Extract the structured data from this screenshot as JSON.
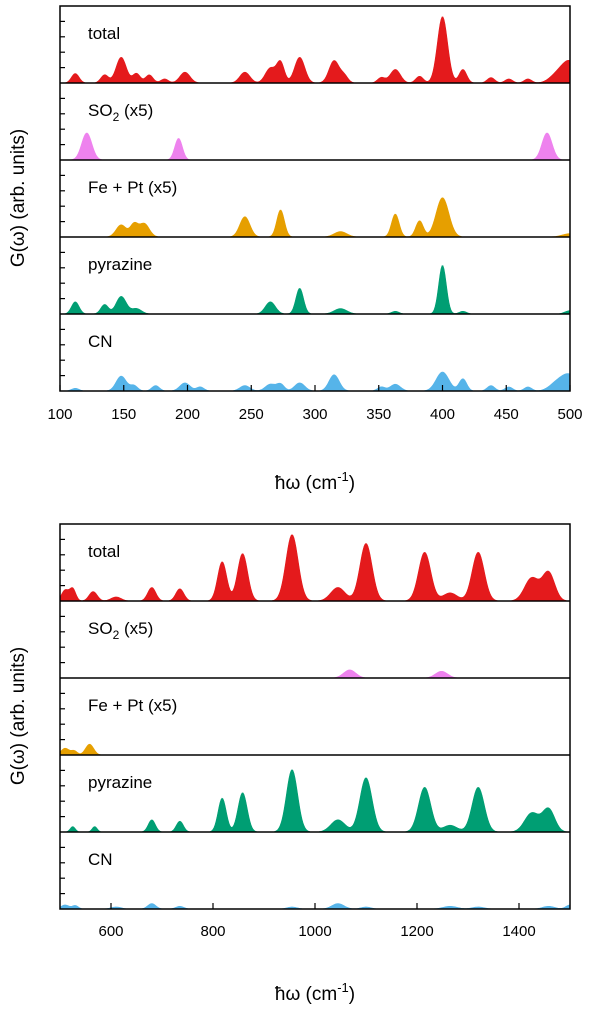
{
  "colors": {
    "total": "#e41a1c",
    "SO2": "#ee82ee",
    "FePt": "#e69f00",
    "pyrazine": "#009e73",
    "CN": "#56b4e9"
  },
  "chart_data": [
    {
      "type": "area",
      "ylabel": "G(ω) (arb. units)",
      "xlabel_main": "ħω (cm",
      "xlabel_sup": "-1",
      "xlabel_tail": ")",
      "xlim": [
        100,
        500
      ],
      "xticks": [
        100,
        150,
        200,
        250,
        300,
        350,
        400,
        450,
        500
      ],
      "grid": false,
      "panels": [
        {
          "name": "total",
          "label": "total",
          "color_key": "total",
          "peaks": [
            [
              112,
              0.14,
              3
            ],
            [
              135,
              0.12,
              3
            ],
            [
              148,
              0.38,
              4
            ],
            [
              160,
              0.14,
              3
            ],
            [
              170,
              0.12,
              3
            ],
            [
              182,
              0.06,
              3
            ],
            [
              198,
              0.16,
              4
            ],
            [
              245,
              0.16,
              4
            ],
            [
              265,
              0.22,
              4
            ],
            [
              273,
              0.3,
              3
            ],
            [
              288,
              0.38,
              4
            ],
            [
              315,
              0.33,
              4
            ],
            [
              323,
              0.1,
              3
            ],
            [
              352,
              0.08,
              3
            ],
            [
              363,
              0.2,
              4
            ],
            [
              382,
              0.1,
              3
            ],
            [
              400,
              0.98,
              4
            ],
            [
              416,
              0.2,
              3
            ],
            [
              438,
              0.08,
              3
            ],
            [
              452,
              0.06,
              3
            ],
            [
              467,
              0.06,
              3
            ],
            [
              490,
              0.12,
              6
            ],
            [
              500,
              0.3,
              6
            ]
          ]
        },
        {
          "name": "SO2",
          "label_main": "SO",
          "label_sub": "2",
          "label_tail": " (x5)",
          "color_key": "SO2",
          "peaks": [
            [
              121,
              0.4,
              4
            ],
            [
              193,
              0.32,
              3
            ],
            [
              482,
              0.4,
              4
            ]
          ]
        },
        {
          "name": "FePt",
          "label": "Fe + Pt (x5)",
          "color_key": "FePt",
          "peaks": [
            [
              148,
              0.18,
              4
            ],
            [
              158,
              0.18,
              3
            ],
            [
              166,
              0.2,
              4
            ],
            [
              245,
              0.3,
              4
            ],
            [
              273,
              0.4,
              3
            ],
            [
              320,
              0.08,
              5
            ],
            [
              363,
              0.34,
              3
            ],
            [
              382,
              0.24,
              3
            ],
            [
              400,
              0.58,
              5
            ],
            [
              500,
              0.05,
              6
            ]
          ]
        },
        {
          "name": "pyrazine",
          "label": "pyrazine",
          "color_key": "pyrazine",
          "peaks": [
            [
              112,
              0.18,
              3
            ],
            [
              135,
              0.14,
              3
            ],
            [
              148,
              0.26,
              4
            ],
            [
              160,
              0.08,
              4
            ],
            [
              265,
              0.18,
              4
            ],
            [
              288,
              0.38,
              3
            ],
            [
              320,
              0.08,
              5
            ],
            [
              363,
              0.04,
              3
            ],
            [
              400,
              0.72,
              3
            ],
            [
              416,
              0.04,
              3
            ],
            [
              500,
              0.05,
              4
            ]
          ]
        },
        {
          "name": "CN",
          "label": "CN",
          "color_key": "CN",
          "peaks": [
            [
              112,
              0.04,
              3
            ],
            [
              148,
              0.22,
              4
            ],
            [
              158,
              0.08,
              3
            ],
            [
              175,
              0.08,
              3
            ],
            [
              198,
              0.12,
              4
            ],
            [
              210,
              0.06,
              3
            ],
            [
              245,
              0.08,
              4
            ],
            [
              265,
              0.1,
              4
            ],
            [
              273,
              0.1,
              3
            ],
            [
              288,
              0.12,
              4
            ],
            [
              315,
              0.24,
              4
            ],
            [
              352,
              0.06,
              3
            ],
            [
              363,
              0.1,
              4
            ],
            [
              400,
              0.28,
              5
            ],
            [
              416,
              0.18,
              3
            ],
            [
              438,
              0.08,
              3
            ],
            [
              452,
              0.06,
              3
            ],
            [
              467,
              0.06,
              3
            ],
            [
              490,
              0.12,
              6
            ],
            [
              500,
              0.22,
              6
            ]
          ]
        }
      ]
    },
    {
      "type": "area",
      "ylabel": "G(ω) (arb. units)",
      "xlabel_main": "ħω (cm",
      "xlabel_sup": "-1",
      "xlabel_tail": ")",
      "xlim": [
        500,
        1500
      ],
      "xticks": [
        600,
        800,
        1000,
        1200,
        1400
      ],
      "grid": false,
      "panels": [
        {
          "name": "total",
          "label": "total",
          "color_key": "total",
          "peaks": [
            [
              510,
              0.16,
              7
            ],
            [
              525,
              0.18,
              6
            ],
            [
              565,
              0.14,
              8
            ],
            [
              610,
              0.06,
              10
            ],
            [
              680,
              0.2,
              8
            ],
            [
              735,
              0.18,
              8
            ],
            [
              818,
              0.58,
              9
            ],
            [
              858,
              0.7,
              10
            ],
            [
              955,
              0.98,
              12
            ],
            [
              1045,
              0.2,
              14
            ],
            [
              1100,
              0.85,
              12
            ],
            [
              1215,
              0.72,
              12
            ],
            [
              1265,
              0.12,
              14
            ],
            [
              1320,
              0.72,
              12
            ],
            [
              1425,
              0.34,
              14
            ],
            [
              1458,
              0.42,
              12
            ]
          ]
        },
        {
          "name": "SO2",
          "label_main": "SO",
          "label_sub": "2",
          "label_tail": " (x5)",
          "color_key": "SO2",
          "peaks": [
            [
              1068,
              0.12,
              12
            ],
            [
              1248,
              0.1,
              12
            ]
          ]
        },
        {
          "name": "FePt",
          "label": "Fe + Pt (x5)",
          "color_key": "FePt",
          "peaks": [
            [
              510,
              0.1,
              8
            ],
            [
              528,
              0.06,
              6
            ],
            [
              558,
              0.16,
              8
            ]
          ]
        },
        {
          "name": "pyrazine",
          "label": "pyrazine",
          "color_key": "pyrazine",
          "peaks": [
            [
              525,
              0.08,
              5
            ],
            [
              568,
              0.08,
              5
            ],
            [
              680,
              0.18,
              7
            ],
            [
              735,
              0.16,
              7
            ],
            [
              818,
              0.5,
              8
            ],
            [
              858,
              0.58,
              9
            ],
            [
              955,
              0.92,
              11
            ],
            [
              1045,
              0.18,
              14
            ],
            [
              1100,
              0.8,
              12
            ],
            [
              1215,
              0.66,
              12
            ],
            [
              1265,
              0.1,
              14
            ],
            [
              1320,
              0.66,
              12
            ],
            [
              1425,
              0.28,
              14
            ],
            [
              1458,
              0.34,
              12
            ]
          ]
        },
        {
          "name": "CN",
          "label": "CN",
          "color_key": "CN",
          "peaks": [
            [
              510,
              0.06,
              8
            ],
            [
              530,
              0.05,
              6
            ],
            [
              610,
              0.03,
              10
            ],
            [
              680,
              0.08,
              8
            ],
            [
              735,
              0.04,
              8
            ],
            [
              955,
              0.03,
              10
            ],
            [
              1045,
              0.08,
              12
            ],
            [
              1100,
              0.03,
              10
            ],
            [
              1265,
              0.04,
              14
            ],
            [
              1320,
              0.03,
              12
            ],
            [
              1458,
              0.04,
              12
            ],
            [
              1500,
              0.06,
              8
            ]
          ]
        }
      ]
    }
  ]
}
